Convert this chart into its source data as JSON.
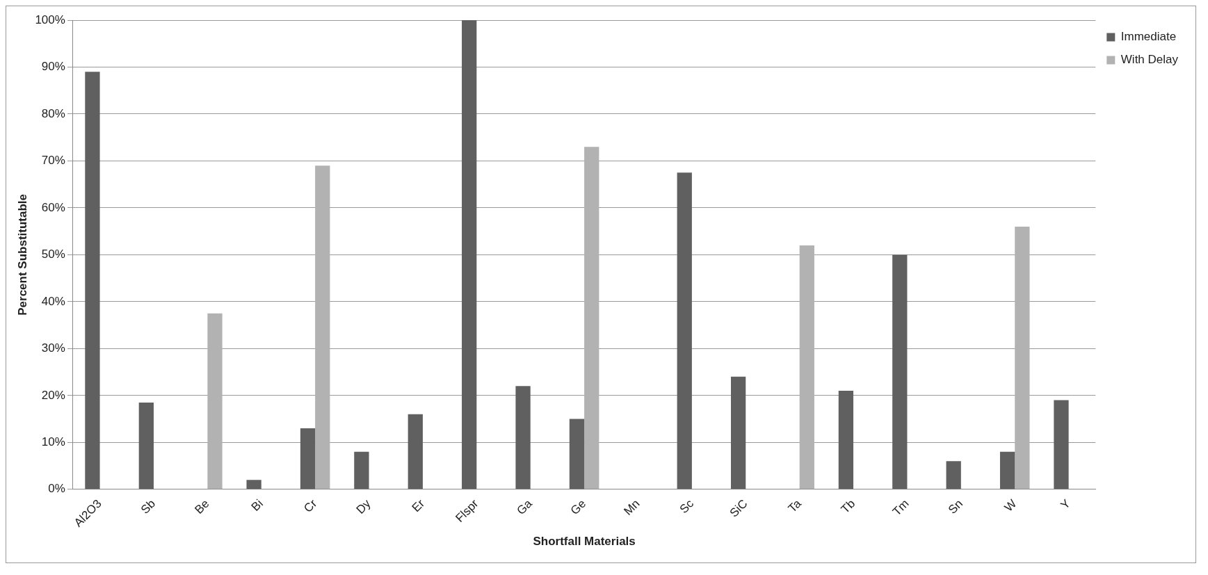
{
  "chart_data": {
    "type": "bar",
    "xlabel": "Shortfall Materials",
    "ylabel": "Percent Substitutable",
    "categories": [
      "Al2O3",
      "Sb",
      "Be",
      "Bi",
      "Cr",
      "Dy",
      "Er",
      "Flspr",
      "Ga",
      "Ge",
      "Mn",
      "Sc",
      "SiC",
      "Ta",
      "Tb",
      "Tm",
      "Sn",
      "W",
      "Y"
    ],
    "series": [
      {
        "name": "Immediate",
        "color": "#606060",
        "values": [
          89,
          18.5,
          0,
          2,
          13,
          8,
          16,
          100,
          22,
          15,
          0,
          67.5,
          24,
          0,
          21,
          50,
          6,
          8,
          19
        ]
      },
      {
        "name": "With Delay",
        "color": "#b2b2b2",
        "values": [
          0,
          0,
          37.5,
          0,
          69,
          0,
          0,
          0,
          0,
          73,
          0,
          0,
          0,
          52,
          0,
          0,
          0,
          56,
          0
        ]
      }
    ],
    "ylim": [
      0,
      100
    ],
    "yticks": [
      {
        "value": 0,
        "label": "0%"
      },
      {
        "value": 10,
        "label": "10%"
      },
      {
        "value": 20,
        "label": "20%"
      },
      {
        "value": 30,
        "label": "30%"
      },
      {
        "value": 40,
        "label": "40%"
      },
      {
        "value": 50,
        "label": "50%"
      },
      {
        "value": 60,
        "label": "60%"
      },
      {
        "value": 70,
        "label": "70%"
      },
      {
        "value": 80,
        "label": "80%"
      },
      {
        "value": 90,
        "label": "90%"
      },
      {
        "value": 100,
        "label": "100%"
      }
    ],
    "grid": "y",
    "legend": "top right"
  }
}
